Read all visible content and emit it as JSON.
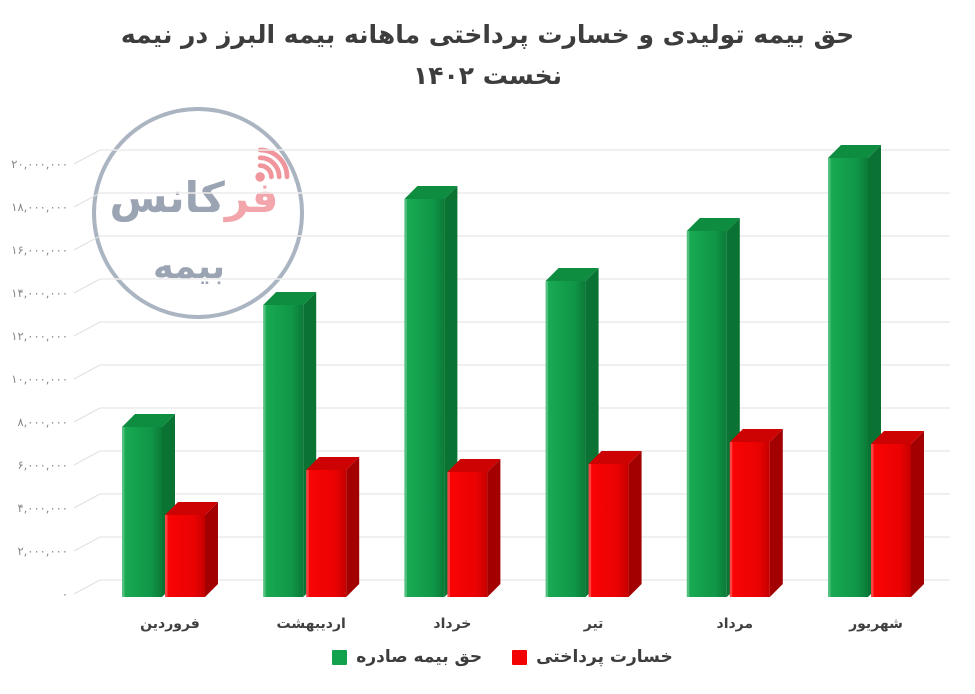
{
  "title": {
    "line1": "حق بیمه تولیدی و خسارت پرداختی ماهانه بیمه البرز در نیمه",
    "line2": "نخست ۱۴۰۲"
  },
  "watermark": {
    "brand_highlight": "فر",
    "brand_rest": "کانس",
    "sub": "بیمه"
  },
  "legend": {
    "premium_label": "حق بیمه صادره",
    "loss_label": "خسارت پرداختی"
  },
  "chart_data": {
    "type": "bar",
    "style": "3d",
    "title": "حق بیمه تولیدی و خسارت پرداختی ماهانه بیمه البرز در نیمه نخست ۱۴۰۲",
    "categories": [
      "فروردین",
      "اردیبهشت",
      "خرداد",
      "تیر",
      "مرداد",
      "شهریور"
    ],
    "series": [
      {
        "name": "حق بیمه صادره",
        "color": "#12A24E",
        "side_color": "#0A7334",
        "top_color": "#0E8C3F",
        "values": [
          7900000,
          13600000,
          18500000,
          14700000,
          17000000,
          20400000
        ]
      },
      {
        "name": "خسارت پرداختی",
        "color": "#F20404",
        "side_color": "#A30101",
        "top_color": "#CD0303",
        "values": [
          3800000,
          5900000,
          5800000,
          6200000,
          7200000,
          7100000
        ]
      }
    ],
    "xlabel": "",
    "ylabel": "",
    "ylim": [
      0,
      20000000
    ],
    "y_tick_step": 2000000,
    "y_tick_labels": [
      "۲۰,۰۰۰,۰۰۰",
      "۱۸,۰۰۰,۰۰۰",
      "۱۶,۰۰۰,۰۰۰",
      "۱۴,۰۰۰,۰۰۰",
      "۱۲,۰۰۰,۰۰۰",
      "۱۰,۰۰۰,۰۰۰",
      "۸,۰۰۰,۰۰۰",
      "۶,۰۰۰,۰۰۰",
      "۴,۰۰۰,۰۰۰",
      "۲,۰۰۰,۰۰۰",
      "۰"
    ],
    "grid": true,
    "legend_position": "bottom"
  }
}
